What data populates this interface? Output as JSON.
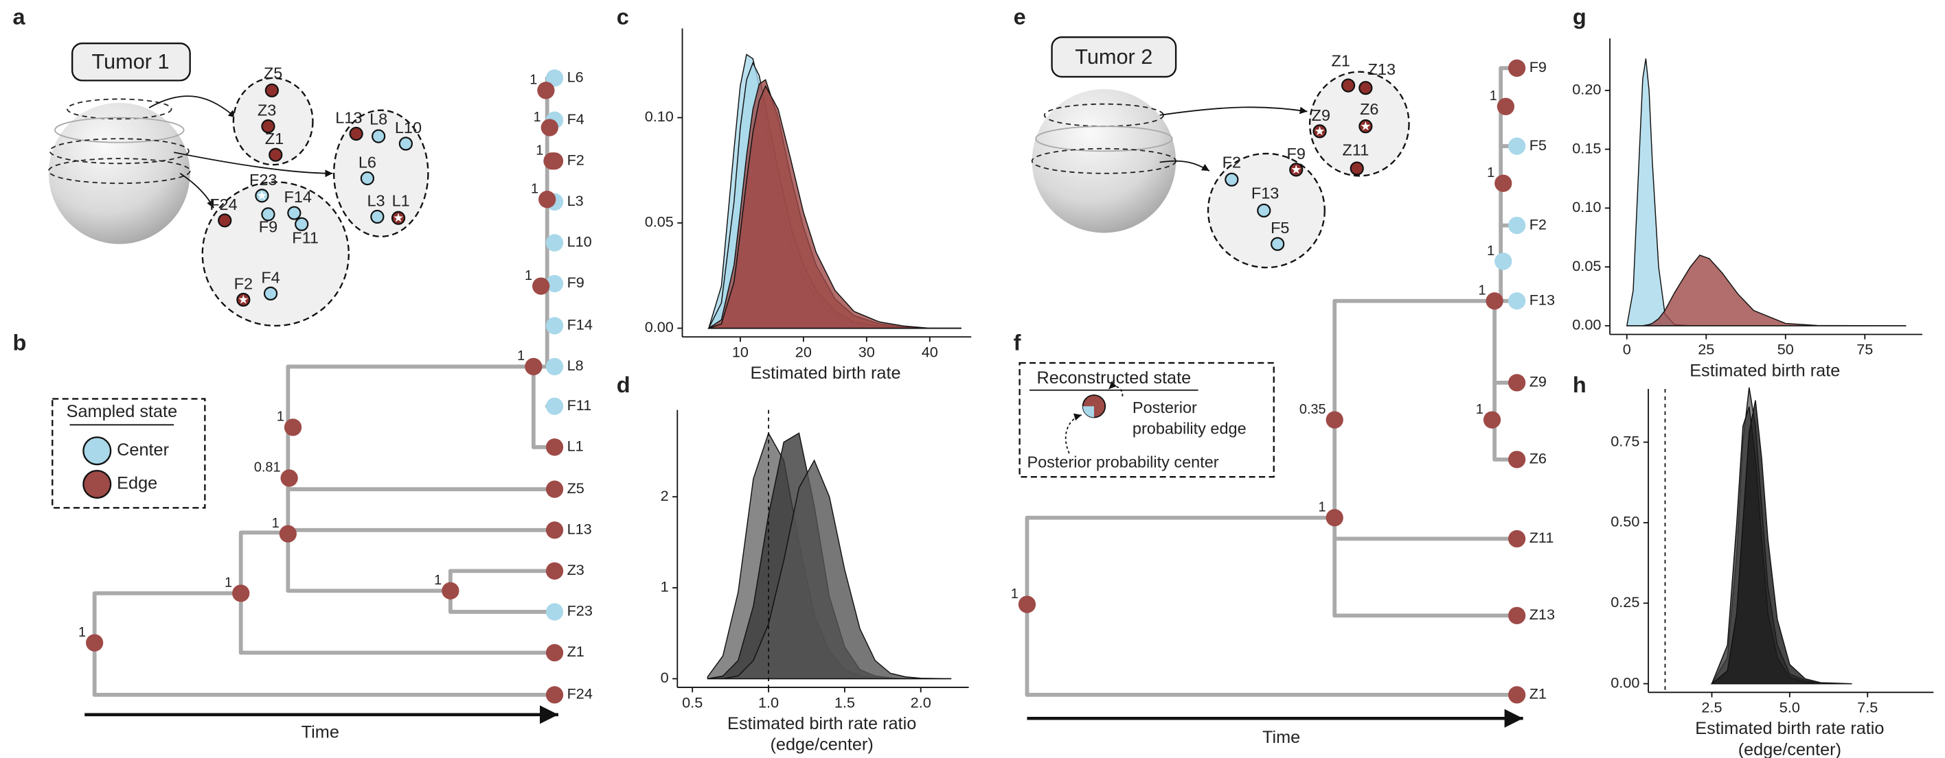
{
  "tumor1": {
    "panel_label": "a",
    "title": "Tumor 1",
    "samples": [
      {
        "label": "Z5",
        "color": "#8e2f2c"
      },
      {
        "label": "Z3",
        "color": "#8e2f2c"
      },
      {
        "label": "Z1",
        "color": "#8e2f2c"
      },
      {
        "label": "L13",
        "color": "#8e2f2c"
      },
      {
        "label": "L8",
        "color": "#a8d8ea"
      },
      {
        "label": "L10",
        "color": "#a8d8ea"
      },
      {
        "label": "L6",
        "color": "#a8d8ea"
      },
      {
        "label": "L3",
        "color": "#a8d8ea"
      },
      {
        "label": "L1",
        "color": "#8e2f2c"
      },
      {
        "label": "F23",
        "color": "#a8d8ea"
      },
      {
        "label": "F24",
        "color": "#8e2f2c"
      },
      {
        "label": "F14",
        "color": "#a8d8ea"
      },
      {
        "label": "F9",
        "color": "#a8d8ea"
      },
      {
        "label": "F11",
        "color": "#a8d8ea"
      },
      {
        "label": "F2",
        "color": "#8e2f2c"
      },
      {
        "label": "F4",
        "color": "#a8d8ea"
      }
    ]
  },
  "tree1": {
    "panel_label": "b",
    "xlabel": "Time",
    "legend": {
      "title": "Sampled state",
      "items": [
        {
          "label": "Center",
          "color": "#a8d8ea"
        },
        {
          "label": "Edge",
          "color": "#9e4a47"
        }
      ]
    },
    "tips": [
      {
        "label": "L6",
        "color": "#a8d8ea"
      },
      {
        "label": "F4",
        "color": "#a8d8ea"
      },
      {
        "label": "F2",
        "color": "#9e4a47"
      },
      {
        "label": "L3",
        "color": "#a8d8ea"
      },
      {
        "label": "L10",
        "color": "#a8d8ea"
      },
      {
        "label": "F9",
        "color": "#a8d8ea"
      },
      {
        "label": "F14",
        "color": "#a8d8ea"
      },
      {
        "label": "L8",
        "color": "#a8d8ea"
      },
      {
        "label": "F11",
        "color": "#a8d8ea"
      },
      {
        "label": "L1",
        "color": "#9e4a47"
      },
      {
        "label": "Z5",
        "color": "#9e4a47"
      },
      {
        "label": "L13",
        "color": "#9e4a47"
      },
      {
        "label": "Z3",
        "color": "#9e4a47"
      },
      {
        "label": "F23",
        "color": "#a8d8ea"
      },
      {
        "label": "Z1",
        "color": "#9e4a47"
      },
      {
        "label": "F24",
        "color": "#9e4a47"
      }
    ],
    "nodes": [
      {
        "support": 1,
        "color": "#9e4a47"
      },
      {
        "support": 1,
        "color": "#9e4a47"
      },
      {
        "support": 1,
        "color": "#9e4a47"
      },
      {
        "support": 0.81,
        "color": "#9e4a47"
      },
      {
        "support": 1,
        "color": "#9e4a47"
      },
      {
        "support": 1,
        "color": "#9e4a47"
      },
      {
        "support": 1,
        "color": "#9e4a47"
      },
      {
        "support": 1,
        "color": "#9e4a47"
      },
      {
        "support": 1,
        "color": "#9e4a47"
      },
      {
        "support": 1,
        "color": "#9e4a47"
      },
      {
        "support": 1,
        "color": "#9e4a47"
      },
      {
        "support": 1,
        "color": "#9e4a47"
      }
    ]
  },
  "tumor2": {
    "panel_label": "e",
    "title": "Tumor 2",
    "samples": [
      {
        "label": "Z1",
        "color": "#8e2f2c"
      },
      {
        "label": "Z13",
        "color": "#8e2f2c"
      },
      {
        "label": "Z9",
        "color": "#8e2f2c"
      },
      {
        "label": "Z6",
        "color": "#8e2f2c"
      },
      {
        "label": "Z11",
        "color": "#8e2f2c"
      },
      {
        "label": "F2",
        "color": "#a8d8ea"
      },
      {
        "label": "F9",
        "color": "#8e2f2c"
      },
      {
        "label": "F13",
        "color": "#a8d8ea"
      },
      {
        "label": "F5",
        "color": "#a8d8ea"
      }
    ]
  },
  "tree2": {
    "panel_label": "f",
    "xlabel": "Time",
    "legend": {
      "title": "Reconstructed state",
      "edge_label": [
        "Posterior",
        "probability edge"
      ],
      "center_label": "Posterior probability center"
    },
    "tips": [
      {
        "label": "F9",
        "color": "#9e4a47"
      },
      {
        "label": "F5",
        "color": "#a8d8ea"
      },
      {
        "label": "F2",
        "color": "#a8d8ea"
      },
      {
        "label": "F13",
        "color": "#a8d8ea"
      },
      {
        "label": "Z9",
        "color": "#9e4a47"
      },
      {
        "label": "Z6",
        "color": "#9e4a47"
      },
      {
        "label": "Z11",
        "color": "#9e4a47"
      },
      {
        "label": "Z13",
        "color": "#9e4a47"
      },
      {
        "label": "Z1",
        "color": "#9e4a47"
      }
    ],
    "nodes": [
      {
        "support": 1,
        "color": "#9e4a47"
      },
      {
        "support": 1,
        "color": "#9e4a47"
      },
      {
        "support": 0.35,
        "color": "#9e4a47"
      },
      {
        "support": 1,
        "color": "#9e4a47"
      },
      {
        "support": 1,
        "color": "#9e4a47"
      },
      {
        "support": 1,
        "color": "#a8d8ea"
      },
      {
        "support": 1,
        "color": "#9e4a47"
      },
      {
        "support": 1,
        "color": "#9e4a47"
      }
    ]
  },
  "chart_data": [
    {
      "type": "area",
      "panel_label": "c",
      "xlabel": [
        "Estimated birth rate"
      ],
      "xlim": [
        2,
        45
      ],
      "ylim": [
        0,
        0.14
      ],
      "xticks": [
        10,
        20,
        30,
        40
      ],
      "yticks": [
        {
          "value": 0,
          "label": "0.00"
        },
        {
          "value": 0.05,
          "label": "0.05"
        },
        {
          "value": 0.1,
          "label": "0.10"
        }
      ],
      "x": [
        5,
        7,
        9,
        10,
        11,
        12,
        13,
        14,
        16,
        18,
        20,
        22,
        25,
        28,
        32,
        36,
        40,
        45
      ],
      "series": [
        {
          "color": "#a8d8ea",
          "values": [
            0,
            0.02,
            0.085,
            0.115,
            0.13,
            0.128,
            0.115,
            0.098,
            0.065,
            0.04,
            0.024,
            0.014,
            0.006,
            0.002,
            0.0005,
            0,
            0,
            0
          ]
        },
        {
          "color": "#a8d8ea",
          "values": [
            0,
            0.012,
            0.06,
            0.095,
            0.118,
            0.126,
            0.12,
            0.105,
            0.075,
            0.048,
            0.03,
            0.018,
            0.008,
            0.003,
            0.001,
            0,
            0,
            0
          ]
        },
        {
          "color": "#9e4a47",
          "values": [
            0,
            0.004,
            0.03,
            0.055,
            0.082,
            0.104,
            0.116,
            0.118,
            0.1,
            0.072,
            0.048,
            0.03,
            0.014,
            0.006,
            0.002,
            0.0005,
            0,
            0
          ]
        },
        {
          "color": "#9e4a47",
          "values": [
            0,
            0.002,
            0.022,
            0.045,
            0.07,
            0.093,
            0.108,
            0.115,
            0.104,
            0.08,
            0.055,
            0.036,
            0.018,
            0.008,
            0.003,
            0.001,
            0,
            0
          ]
        }
      ]
    },
    {
      "type": "area",
      "panel_label": "d",
      "xlabel": [
        "Estimated birth rate ratio",
        "(edge/center)"
      ],
      "xlim": [
        0.45,
        2.25
      ],
      "ylim": [
        0,
        2.9
      ],
      "xticks": [
        0.5,
        {
          "value": 1,
          "label": "1.0"
        },
        1.5,
        {
          "value": 2,
          "label": "2.0"
        }
      ],
      "yticks": [
        0,
        1,
        2
      ],
      "vline": 1,
      "x": [
        0.6,
        0.7,
        0.8,
        0.9,
        1.0,
        1.1,
        1.2,
        1.3,
        1.4,
        1.5,
        1.6,
        1.7,
        1.8,
        1.9,
        2.0,
        2.2
      ],
      "series": [
        {
          "color": "#6a6a6a",
          "values": [
            0.02,
            0.25,
            0.95,
            2.2,
            2.7,
            2.4,
            1.5,
            0.7,
            0.3,
            0.1,
            0.03,
            0.01,
            0,
            0,
            0,
            0
          ]
        },
        {
          "color": "#3a3a3a",
          "values": [
            0,
            0.03,
            0.2,
            0.8,
            1.8,
            2.6,
            2.7,
            1.9,
            0.9,
            0.35,
            0.1,
            0.03,
            0.01,
            0,
            0,
            0
          ]
        },
        {
          "color": "#555555",
          "values": [
            0,
            0,
            0.03,
            0.2,
            0.6,
            1.3,
            2.1,
            2.4,
            2.0,
            1.2,
            0.55,
            0.2,
            0.06,
            0.02,
            0.005,
            0
          ]
        }
      ]
    },
    {
      "type": "area",
      "panel_label": "g",
      "xlabel": [
        "Estimated birth rate"
      ],
      "xlim": [
        -3,
        90
      ],
      "ylim": [
        0,
        0.24
      ],
      "xticks": [
        0,
        25,
        50,
        75
      ],
      "yticks": [
        {
          "value": 0,
          "label": "0.00"
        },
        {
          "value": 0.05,
          "label": "0.05"
        },
        {
          "value": 0.1,
          "label": "0.10"
        },
        {
          "value": 0.15,
          "label": "0.15"
        },
        {
          "value": 0.2,
          "label": "0.20"
        }
      ],
      "x": [
        0,
        2,
        4,
        5,
        6,
        7,
        8,
        10,
        12,
        15,
        20,
        23,
        26,
        30,
        35,
        40,
        50,
        60,
        88
      ],
      "series": [
        {
          "color": "#a8d8ea",
          "values": [
            0,
            0.03,
            0.15,
            0.21,
            0.227,
            0.2,
            0.14,
            0.05,
            0.01,
            0.001,
            0,
            0,
            0,
            0,
            0,
            0,
            0,
            0,
            0
          ]
        },
        {
          "color": "#9e4a47",
          "values": [
            0,
            0,
            0,
            0,
            0.0005,
            0.001,
            0.002,
            0.006,
            0.013,
            0.028,
            0.05,
            0.06,
            0.057,
            0.045,
            0.027,
            0.013,
            0.002,
            0.0002,
            0
          ]
        }
      ]
    },
    {
      "type": "area",
      "panel_label": "h",
      "xlabel": [
        "Estimated birth rate ratio",
        "(edge/center)"
      ],
      "xlim": [
        0.7,
        9.3
      ],
      "ylim": [
        0,
        0.9
      ],
      "xticks": [
        2.5,
        {
          "value": 5,
          "label": "5.0"
        },
        7.5
      ],
      "yticks": [
        {
          "value": 0,
          "label": "0.00"
        },
        {
          "value": 0.25,
          "label": "0.25"
        },
        {
          "value": 0.5,
          "label": "0.50"
        },
        {
          "value": 0.75,
          "label": "0.75"
        }
      ],
      "vline": 1,
      "x": [
        2.5,
        3,
        3.3,
        3.5,
        3.7,
        3.9,
        4.1,
        4.3,
        4.6,
        5,
        5.5,
        6,
        7
      ],
      "series": [
        {
          "color": "#6a6a6a",
          "values": [
            0,
            0.08,
            0.4,
            0.75,
            0.92,
            0.8,
            0.55,
            0.3,
            0.12,
            0.03,
            0.01,
            0,
            0
          ]
        },
        {
          "color": "#3a3a3a",
          "values": [
            0,
            0.12,
            0.5,
            0.8,
            0.86,
            0.7,
            0.45,
            0.22,
            0.08,
            0.02,
            0.005,
            0,
            0
          ]
        },
        {
          "color": "#1a1a1a",
          "values": [
            0,
            0.04,
            0.22,
            0.5,
            0.78,
            0.88,
            0.7,
            0.45,
            0.2,
            0.06,
            0.015,
            0.003,
            0
          ]
        }
      ]
    }
  ]
}
